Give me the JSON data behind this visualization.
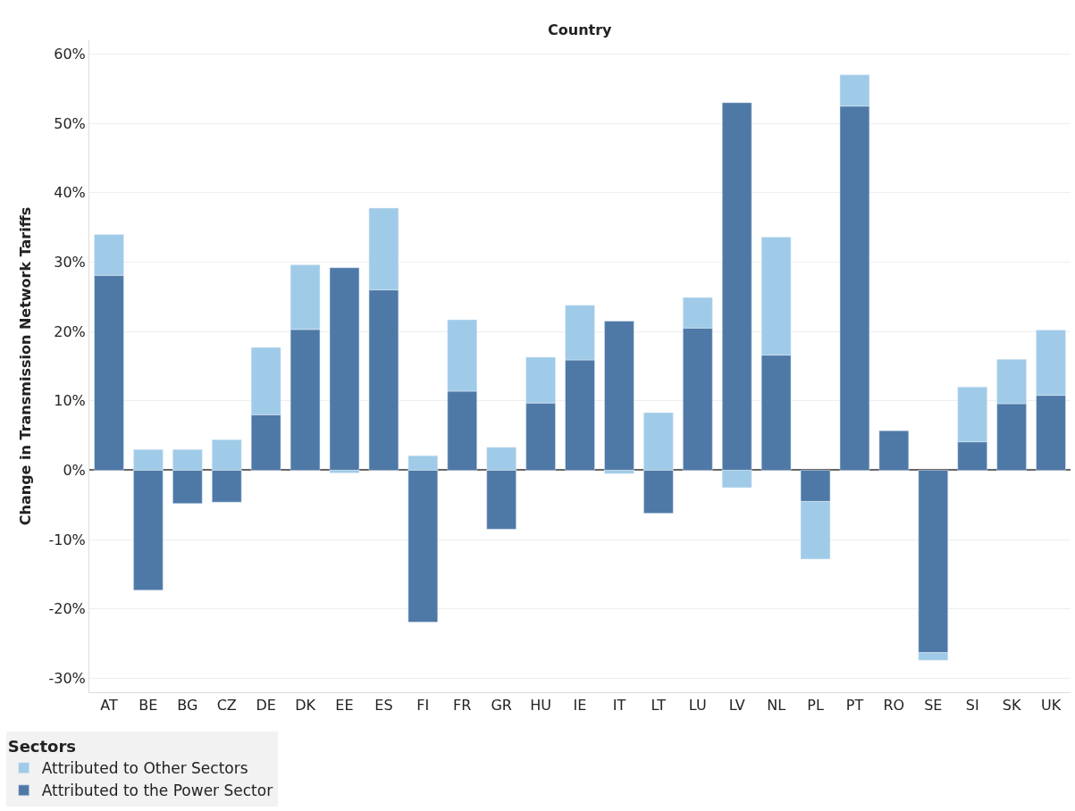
{
  "chart_data": {
    "type": "bar",
    "stacked": true,
    "xlabel": "Country",
    "ylabel": "Change in Transmission Network Tariffs",
    "legend_title": "Sectors",
    "legend": "bottom",
    "grid": "y",
    "categories": [
      "AT",
      "BE",
      "BG",
      "CZ",
      "DE",
      "DK",
      "EE",
      "ES",
      "FI",
      "FR",
      "GR",
      "HU",
      "IE",
      "IT",
      "LT",
      "LU",
      "LV",
      "NL",
      "PL",
      "PT",
      "RO",
      "SE",
      "SI",
      "SK",
      "UK"
    ],
    "series": [
      {
        "name": "Attributed to the Power Sector",
        "color": "#4e79a7",
        "values": [
          28.1,
          -17.3,
          -4.8,
          -4.6,
          8.0,
          20.3,
          29.2,
          26.0,
          -21.9,
          11.4,
          -8.5,
          9.7,
          15.9,
          21.5,
          -6.2,
          20.5,
          53.0,
          16.6,
          -4.5,
          52.5,
          5.7,
          -26.3,
          4.1,
          9.6,
          10.8
        ]
      },
      {
        "name": "Attributed to Other Sectors",
        "color": "#a0cbe8",
        "values": [
          5.9,
          3.0,
          3.0,
          4.4,
          9.7,
          9.3,
          -0.4,
          11.8,
          2.1,
          10.3,
          3.3,
          6.6,
          7.9,
          -0.5,
          8.3,
          4.4,
          -2.5,
          17.0,
          -8.3,
          4.5,
          null,
          -1.1,
          7.9,
          6.4,
          9.4
        ]
      }
    ],
    "ylim": [
      -32,
      62
    ],
    "yticks": [
      {
        "value": -30,
        "label": "-30%"
      },
      {
        "value": -20,
        "label": "-20%"
      },
      {
        "value": -10,
        "label": "-10%"
      },
      {
        "value": 0,
        "label": "0%"
      },
      {
        "value": 10,
        "label": "10%"
      },
      {
        "value": 20,
        "label": "20%"
      },
      {
        "value": 30,
        "label": "30%"
      },
      {
        "value": 40,
        "label": "40%"
      },
      {
        "value": 50,
        "label": "50%"
      },
      {
        "value": 60,
        "label": "60%"
      }
    ]
  }
}
